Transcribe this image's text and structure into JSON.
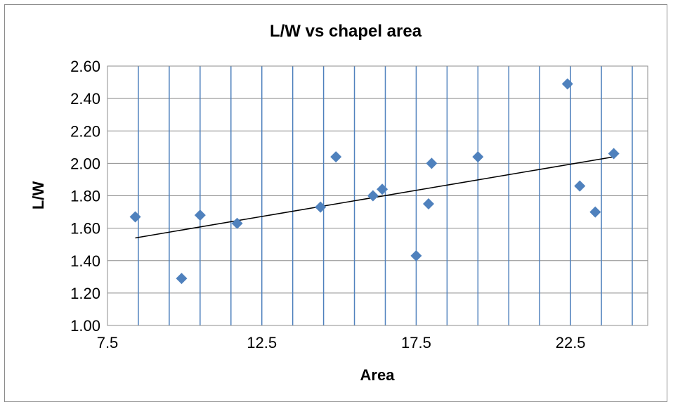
{
  "chart_data": {
    "type": "scatter",
    "title": "L/W vs chapel area",
    "xlabel": "Area",
    "ylabel": "L/W",
    "xlim": [
      7.5,
      25
    ],
    "ylim": [
      1.0,
      2.6
    ],
    "x_major_step": 1,
    "y_major_step": 0.2,
    "x_tick_labels": [
      {
        "value": 7.5,
        "label": "7.5"
      },
      {
        "value": 12.5,
        "label": "12.5"
      },
      {
        "value": 17.5,
        "label": "17.5"
      },
      {
        "value": 22.5,
        "label": "22.5"
      }
    ],
    "y_tick_labels": [
      "1.00",
      "1.20",
      "1.40",
      "1.60",
      "1.80",
      "2.00",
      "2.20",
      "2.40",
      "2.60"
    ],
    "grid": true,
    "marker": "diamond",
    "colors": {
      "marker": "#4f81bd",
      "v_grid": "#4f81bd",
      "h_grid": "#8c8c8c",
      "trendline": "#000000"
    },
    "points": [
      {
        "x": 8.4,
        "y": 1.67
      },
      {
        "x": 9.9,
        "y": 1.29
      },
      {
        "x": 10.5,
        "y": 1.68
      },
      {
        "x": 11.7,
        "y": 1.63
      },
      {
        "x": 14.4,
        "y": 1.73
      },
      {
        "x": 14.9,
        "y": 2.04
      },
      {
        "x": 16.1,
        "y": 1.8
      },
      {
        "x": 16.4,
        "y": 1.84
      },
      {
        "x": 17.5,
        "y": 1.43
      },
      {
        "x": 17.9,
        "y": 1.75
      },
      {
        "x": 18.0,
        "y": 2.0
      },
      {
        "x": 19.5,
        "y": 2.04
      },
      {
        "x": 22.4,
        "y": 2.49
      },
      {
        "x": 22.8,
        "y": 1.86
      },
      {
        "x": 23.3,
        "y": 1.7
      },
      {
        "x": 23.9,
        "y": 2.06
      }
    ],
    "trendline": {
      "type": "linear",
      "x_start": 8.4,
      "x_end": 23.9,
      "y_start": 1.54,
      "y_end": 2.04
    }
  }
}
